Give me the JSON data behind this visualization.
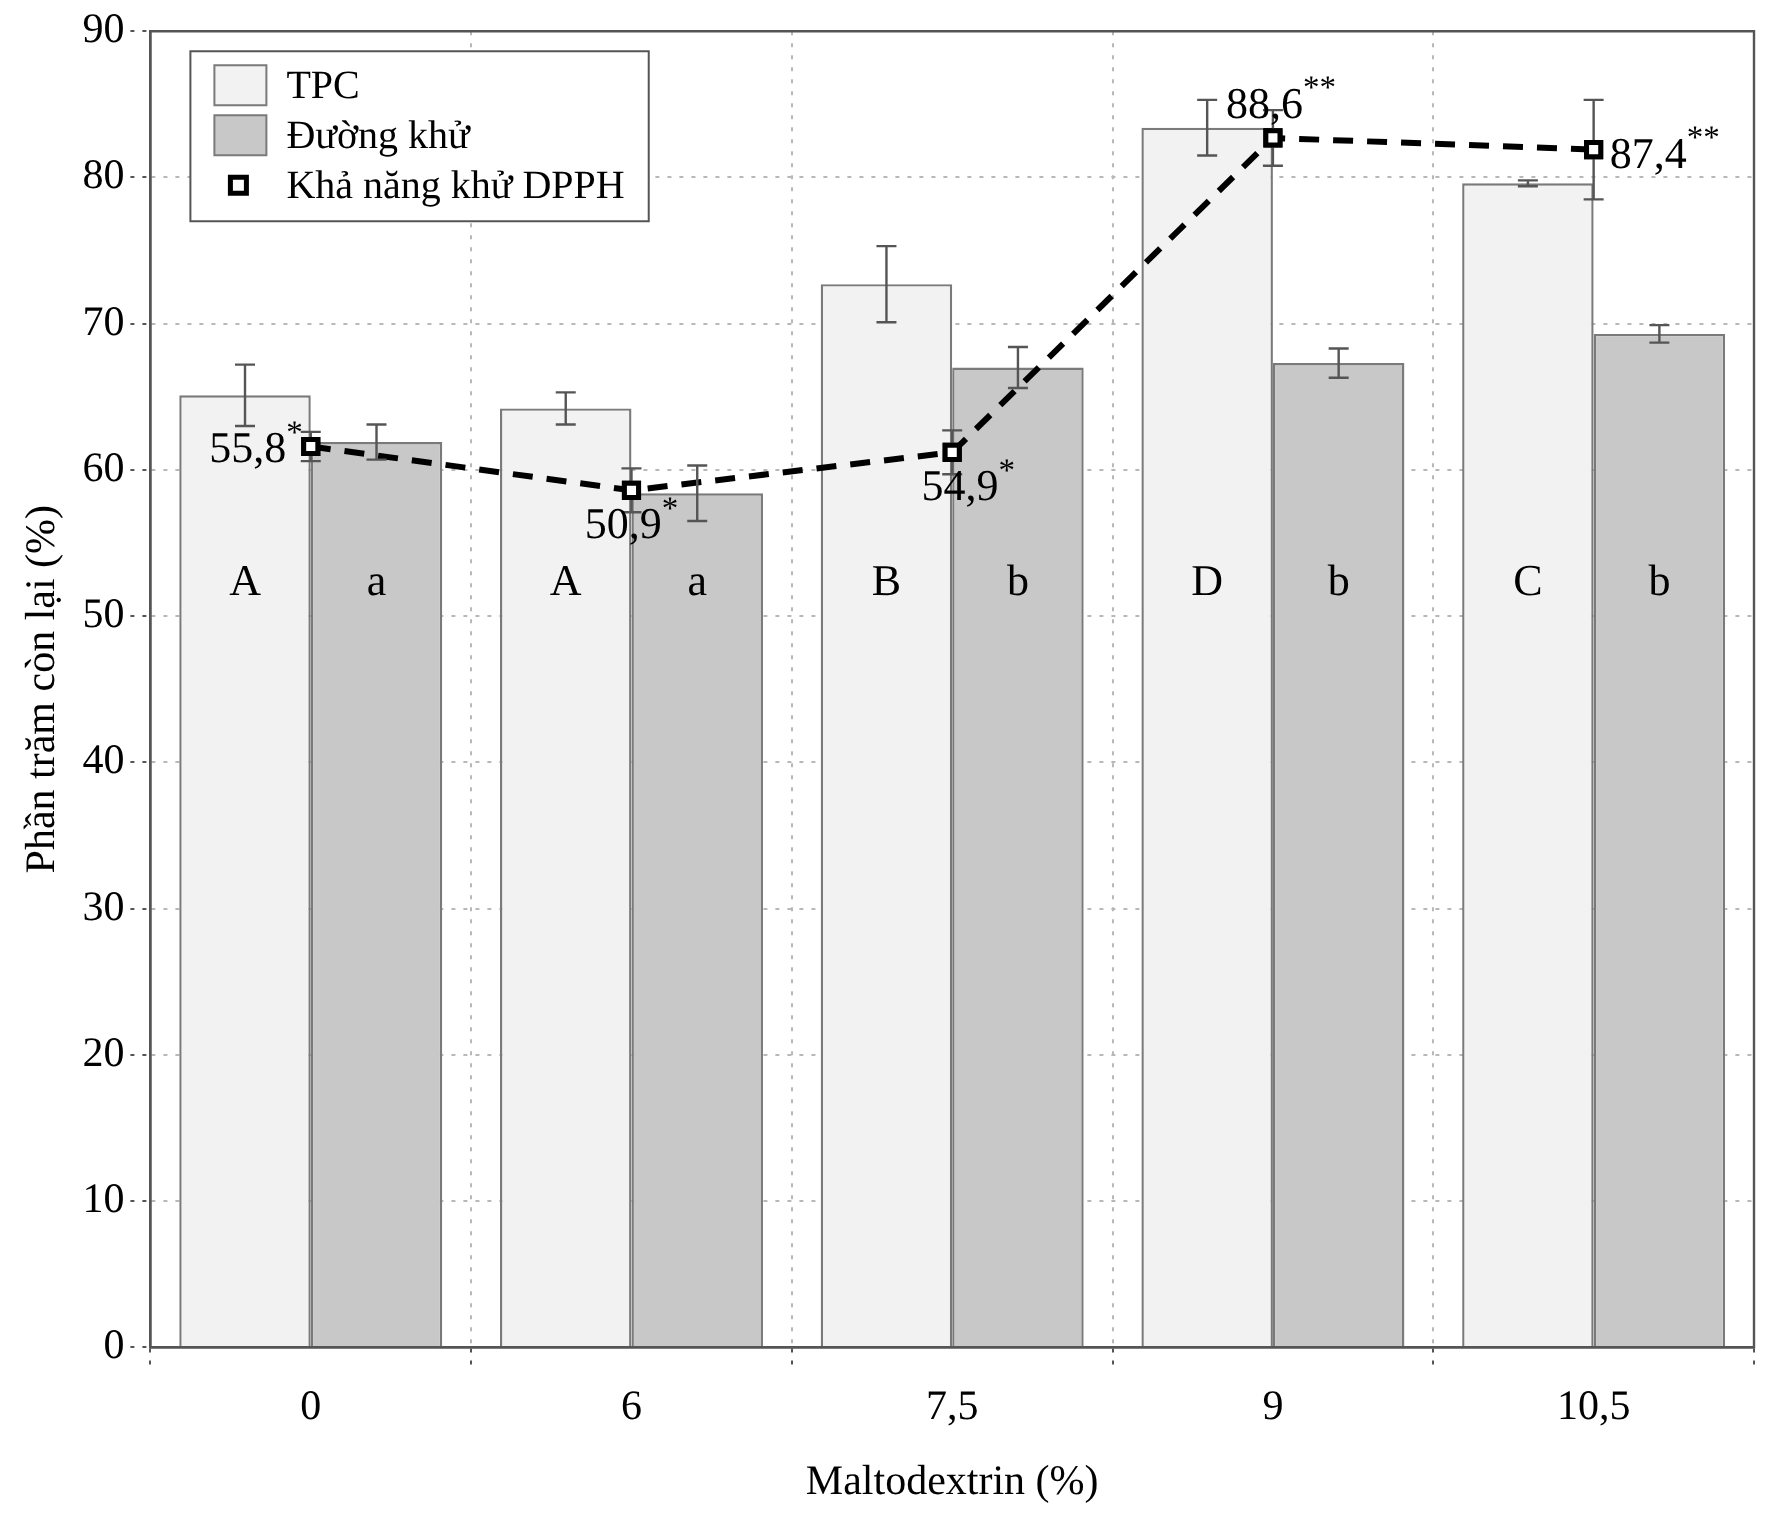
{
  "chart_data": {
    "type": "bar",
    "xlabel": "Maltodextrin (%)",
    "ylabel": "Phần trăm còn lại (%)",
    "categories": [
      "0",
      "6",
      "7,5",
      "9",
      "10,5"
    ],
    "series": [
      {
        "name": "TPC",
        "color": "#f2f2f2",
        "values": [
          65.1,
          64.2,
          72.7,
          83.4,
          79.6
        ],
        "errors": [
          2.1,
          1.1,
          2.6,
          1.9,
          0.2
        ],
        "value_labels": [
          "A",
          "A",
          "B",
          "D",
          "C"
        ]
      },
      {
        "name": "Đường khử",
        "color": "#c8c8c8",
        "values": [
          61.9,
          58.4,
          67.0,
          67.3,
          69.3
        ],
        "errors": [
          1.2,
          1.9,
          1.4,
          1.0,
          0.6
        ],
        "value_labels": [
          "a",
          "a",
          "b",
          "b",
          "b"
        ]
      },
      {
        "name": "Khả năng khử DPPH",
        "type": "line",
        "color": "#000000",
        "values": [
          61.6,
          58.6,
          61.2,
          82.7,
          81.9
        ],
        "errors": [
          1.0,
          1.5,
          1.5,
          1.9,
          3.4
        ],
        "marker": "square",
        "line_style": "dashed"
      }
    ],
    "annotations": [
      {
        "text": "55,8$^{*}$",
        "x": "0",
        "y": 61.6
      },
      {
        "text": "50,9$^{*}$",
        "x": "6",
        "y": 58.6
      },
      {
        "text": "54,9$^{*}$",
        "x": "7,5",
        "y": 61.2
      },
      {
        "text": "88,6$^{**}$",
        "x": "9",
        "y": 82.7
      },
      {
        "text": "87,4$^{**}$",
        "x": "10,5",
        "y": 81.9
      }
    ],
    "ylim": [
      0,
      90
    ],
    "yticks": [
      0,
      10,
      20,
      30,
      40,
      50,
      60,
      70,
      80,
      90
    ],
    "grid": true,
    "legend": "top left"
  }
}
